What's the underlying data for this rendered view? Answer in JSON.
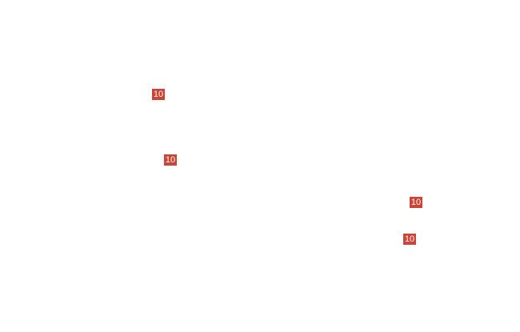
{
  "badge_color": "#cc4436",
  "badges": [
    {
      "label": "10"
    },
    {
      "label": "10"
    },
    {
      "label": "10"
    },
    {
      "label": "10"
    }
  ]
}
